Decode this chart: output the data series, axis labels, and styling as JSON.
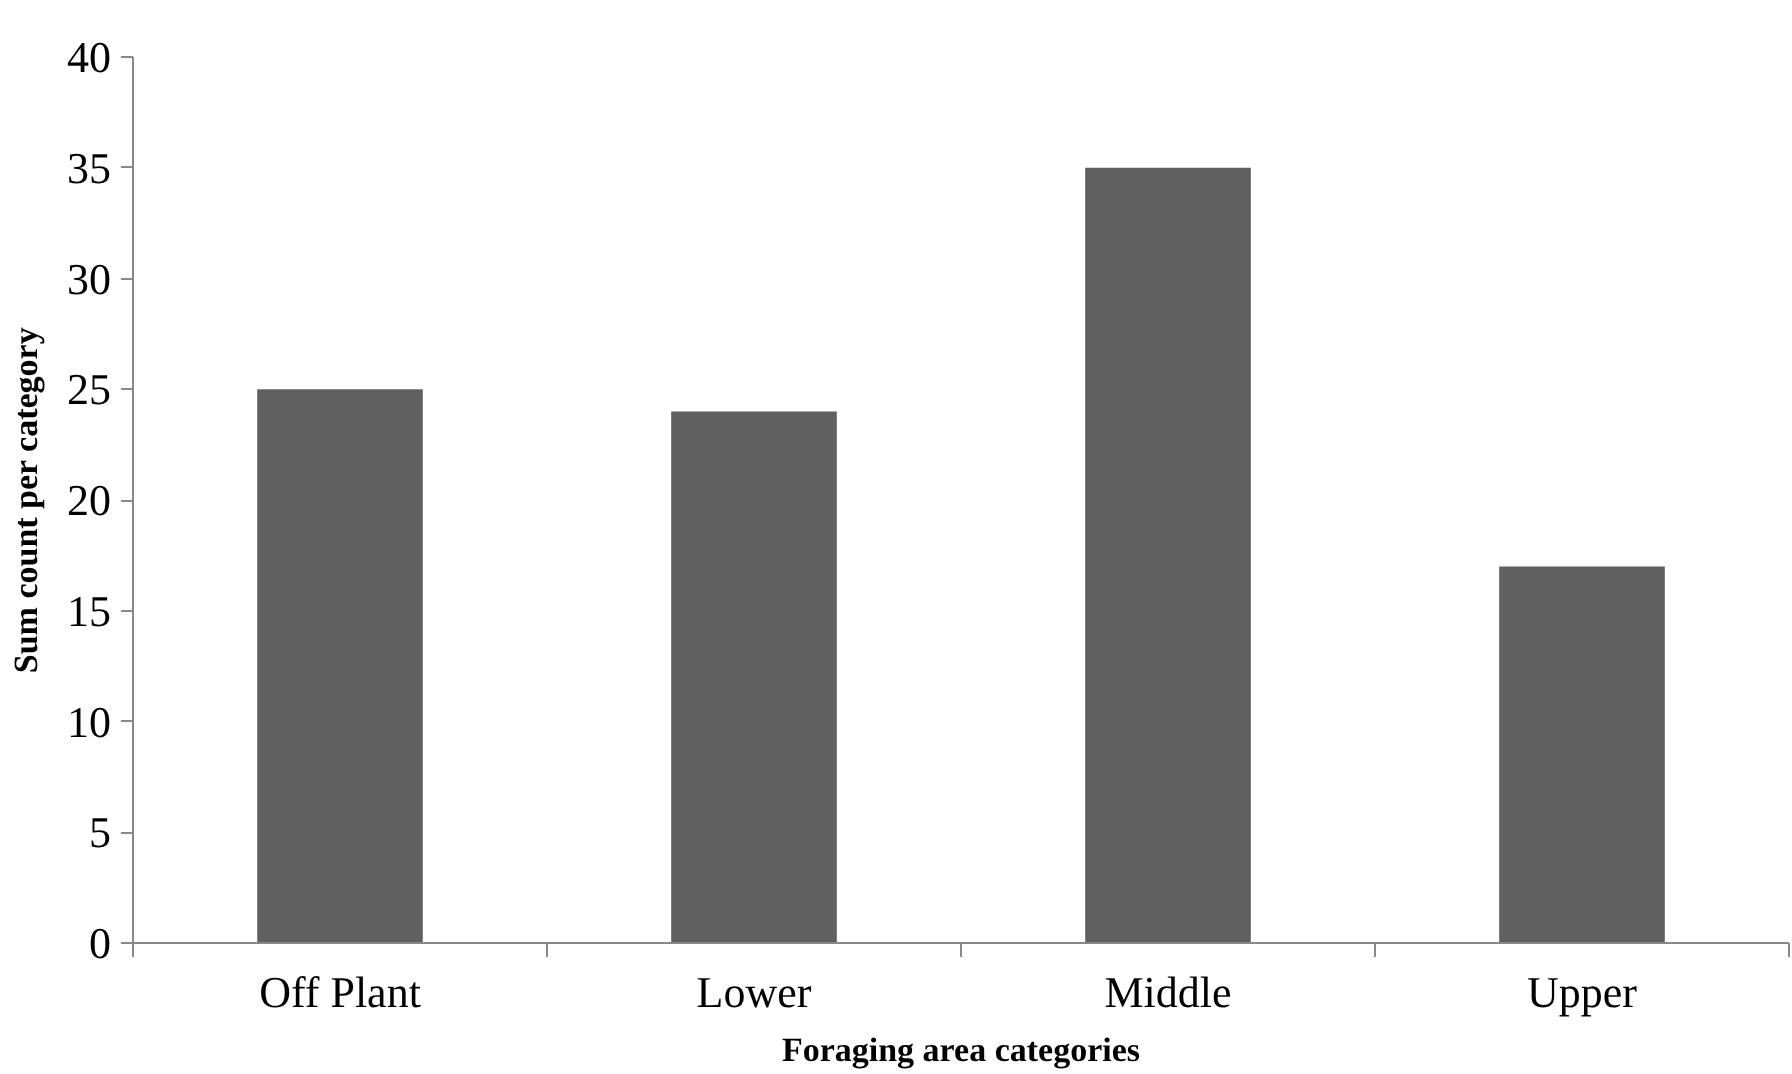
{
  "chart_data": {
    "type": "bar",
    "xlabel": "Foraging area categories",
    "ylabel": "Sum count per category",
    "categories": [
      "Off Plant",
      "Lower",
      "Middle",
      "Upper"
    ],
    "values": [
      25,
      24,
      35,
      17
    ],
    "color": "#606060",
    "ylim": [
      0,
      40
    ],
    "yticks": [
      0,
      5,
      10,
      15,
      20,
      25,
      30,
      35,
      40
    ],
    "grid": false
  }
}
